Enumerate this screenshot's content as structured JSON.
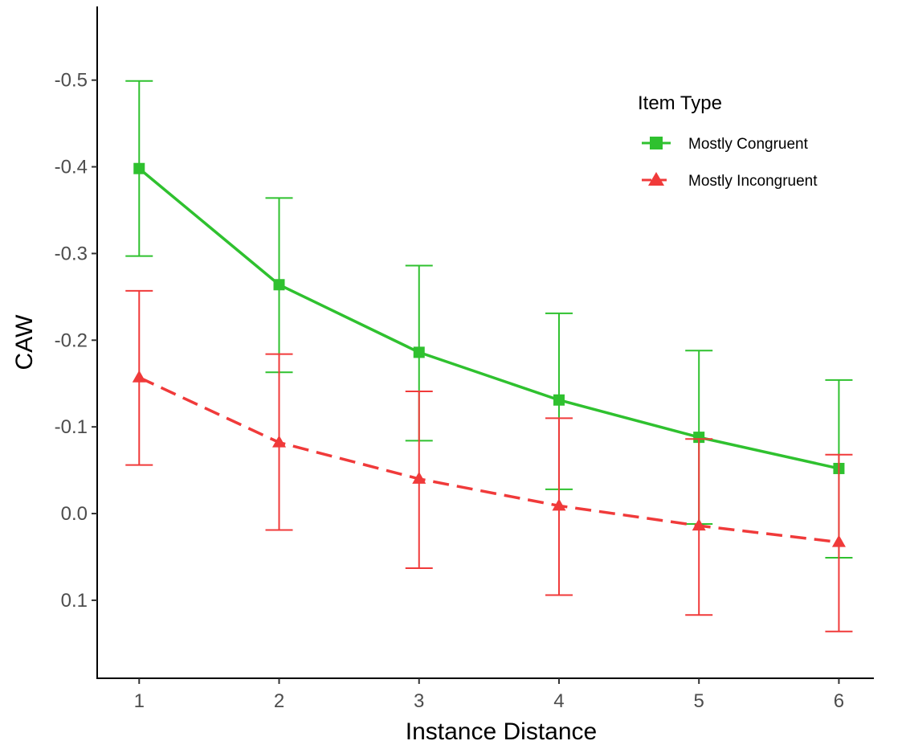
{
  "chart_data": {
    "type": "line",
    "xlabel": "Instance Distance",
    "ylabel": "CAW",
    "x": [
      1,
      2,
      3,
      4,
      5,
      6
    ],
    "x_tick_labels": [
      "1",
      "2",
      "3",
      "4",
      "5",
      "6"
    ],
    "y_tick_values": [
      -0.5,
      -0.4,
      -0.3,
      -0.2,
      -0.1,
      0.0,
      0.1
    ],
    "y_tick_labels": [
      "-0.5",
      "-0.4",
      "-0.3",
      "-0.2",
      "-0.1",
      "0.0",
      "0.1"
    ],
    "y_reversed": true,
    "xlim": [
      0.7,
      6.25
    ],
    "ylim": [
      0.19,
      -0.585
    ],
    "grid": false,
    "legend": {
      "title": "Item Type",
      "position": "top-right"
    },
    "series": [
      {
        "name": "Mostly Congruent",
        "color": "#2fc12f",
        "marker": "square",
        "line_style": "solid",
        "values": [
          -0.398,
          -0.264,
          -0.186,
          -0.131,
          -0.088,
          -0.052
        ],
        "error_lower": [
          -0.297,
          -0.163,
          -0.084,
          -0.028,
          0.012,
          0.051
        ],
        "error_upper": [
          -0.499,
          -0.364,
          -0.286,
          -0.231,
          -0.188,
          -0.154
        ]
      },
      {
        "name": "Mostly Incongruent",
        "color": "#f03a3a",
        "marker": "triangle",
        "line_style": "dashed",
        "values": [
          -0.157,
          -0.082,
          -0.04,
          -0.009,
          0.014,
          0.033
        ],
        "error_lower": [
          -0.056,
          0.019,
          0.063,
          0.094,
          0.117,
          0.136
        ],
        "error_upper": [
          -0.257,
          -0.184,
          -0.141,
          -0.11,
          -0.086,
          -0.068
        ]
      }
    ]
  }
}
